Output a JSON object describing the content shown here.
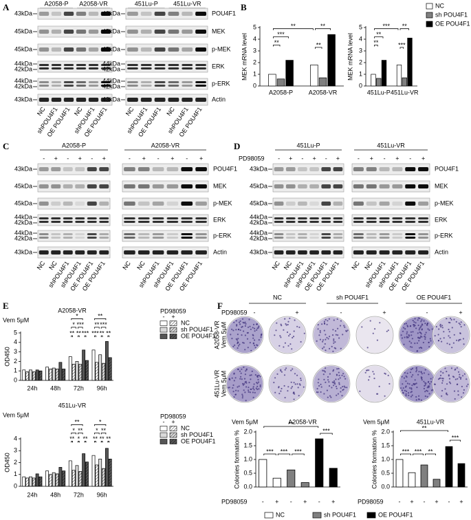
{
  "panel_labels": [
    "A",
    "B",
    "C",
    "D",
    "E",
    "F"
  ],
  "blot_panels": [
    {
      "blocks": [
        {
          "titles": [
            "A2058-P",
            "A2058-VR"
          ],
          "markers": [
            "43kDa",
            "45kDa",
            "45kDa",
            [
              "44kDa",
              "42kDa"
            ],
            [
              "44kDa",
              "42kDa"
            ],
            "43kDa"
          ],
          "lanes": [
            "NC",
            "shPOU4F1",
            "OE POU4F1",
            "NC",
            "shPOU4F1",
            "OE POU4F1"
          ]
        },
        {
          "titles": [
            "451Lu-P",
            "451Lu-VR"
          ],
          "markers": [
            "43kDa",
            "45kDa",
            "45kDa",
            [
              "44kDa",
              "42kDa"
            ],
            [
              "44kDa",
              "42kDa"
            ],
            "43kDa"
          ],
          "lanes": [
            "NC",
            "shPOU4F1",
            "OE POU4F1",
            "NC",
            "shPOU4F1",
            "OE POU4F1"
          ]
        }
      ],
      "proteins": [
        "POU4F1",
        "MEK",
        "p-MEK",
        "ERK",
        "p-ERK",
        "Actin"
      ]
    },
    {
      "blocks": [
        {
          "titles": [
            "A2058-P"
          ],
          "signs": [
            "-",
            "+",
            "-",
            "+",
            "-",
            "+"
          ],
          "markers": [
            "43kDa",
            "45kDa",
            "45kDa",
            [
              "44kDa",
              "42kDa"
            ],
            [
              "44kDa",
              "42kDa"
            ],
            "43kDa"
          ],
          "lanes": [
            "NC",
            "NC",
            "shPOU4F1",
            "shPOU4F1",
            "OE POU4F1",
            "OE POU4F1"
          ]
        },
        {
          "titles": [
            "A2058-VR"
          ],
          "signs": [
            "-",
            "+",
            "-",
            "+",
            "-",
            "+"
          ],
          "lanes": [
            "NC",
            "NC",
            "shPOU4F1",
            "shPOU4F1",
            "OE POU4F1",
            "OE POU4F1"
          ]
        }
      ],
      "proteins": [
        "POU4F1",
        "MEK",
        "p-MEK",
        "ERK",
        "p-ERK",
        "Actin"
      ]
    },
    {
      "pd_label": "PD98059",
      "blocks": [
        {
          "titles": [
            "451Lu-P"
          ],
          "signs": [
            "-",
            "+",
            "-",
            "+",
            "-",
            "+"
          ],
          "markers": [
            "43kDa",
            "45kDa",
            "45kDa",
            [
              "44kDa",
              "42kDa"
            ],
            [
              "44kDa",
              "42kDa"
            ],
            "43kDa"
          ],
          "lanes": [
            "NC",
            "NC",
            "shPOU4F1",
            "shPOU4F1",
            "OE POU4F1",
            "OE POU4F1"
          ]
        },
        {
          "titles": [
            "451Lu-VR"
          ],
          "signs": [
            "-",
            "+",
            "-",
            "+",
            "-",
            "+"
          ],
          "lanes": [
            "NC",
            "NC",
            "shPOU4F1",
            "shPOU4F1",
            "OE POU4F1",
            "OE POU4F1"
          ]
        }
      ],
      "proteins": [
        "POU4F1",
        "MEK",
        "p-MEK",
        "ERK",
        "p-ERK",
        "Actin"
      ]
    }
  ],
  "chart_data": [
    {
      "type": "bar",
      "ylabel": "MEK mRNA level",
      "categories": [
        "A2058-P",
        "A2058-VR"
      ],
      "series": [
        {
          "color": "#ffffff",
          "values": [
            1.0,
            1.8
          ]
        },
        {
          "color": "#808080",
          "values": [
            0.6,
            0.7
          ]
        },
        {
          "color": "#000000",
          "values": [
            2.2,
            4.4
          ]
        }
      ],
      "ylim": [
        0,
        5
      ],
      "yticks": [
        0,
        1,
        2,
        3,
        4,
        5
      ],
      "annotations": [
        "**",
        "***",
        "**",
        "**",
        "**"
      ]
    },
    {
      "type": "bar",
      "ylabel": "MEK mRNA level",
      "categories": [
        "451Lu-P",
        "451Lu-VR"
      ],
      "series": [
        {
          "name": "NC",
          "color": "#ffffff",
          "values": [
            1.0,
            1.8
          ]
        },
        {
          "name": "sh POU4F1",
          "color": "#808080",
          "values": [
            0.65,
            0.7
          ]
        },
        {
          "name": "OE POU4F1",
          "color": "#000000",
          "values": [
            2.2,
            4.1
          ]
        }
      ],
      "ylim": [
        0,
        5
      ],
      "yticks": [
        0,
        1,
        2,
        3,
        4,
        5
      ],
      "legend": "right",
      "annotations": [
        "***",
        "**",
        "**",
        "**",
        "***"
      ]
    },
    {
      "type": "bar",
      "title": "A2058-VR",
      "condition": "Vem 5μM",
      "ylabel": "OD450",
      "categories": [
        "24h",
        "48h",
        "72h",
        "96h"
      ],
      "series": [
        {
          "color": "#ffffff",
          "hatch": false,
          "values": [
            1.1,
            1.4,
            2.5,
            3.2
          ]
        },
        {
          "color": "#ffffff",
          "hatch": true,
          "values": [
            0.9,
            1.2,
            1.7,
            1.9
          ]
        },
        {
          "color": "#d9d9d9",
          "hatch": false,
          "values": [
            1.1,
            1.3,
            2.0,
            2.7
          ]
        },
        {
          "color": "#d9d9d9",
          "hatch": true,
          "values": [
            0.9,
            1.2,
            1.7,
            1.8
          ]
        },
        {
          "color": "#555555",
          "hatch": false,
          "values": [
            1.1,
            1.9,
            3.2,
            4.1
          ]
        },
        {
          "color": "#555555",
          "hatch": true,
          "values": [
            1.0,
            1.2,
            2.1,
            2.4
          ]
        }
      ],
      "ylim": [
        0,
        5
      ],
      "yticks": [
        0,
        1,
        2,
        3,
        4,
        5
      ],
      "legend": {
        "title": "PD98059",
        "columns": [
          "-",
          "+"
        ],
        "rows": [
          "NC",
          "sh POU4F1",
          "OE POU4F1"
        ]
      },
      "annotations": [
        "*",
        "**",
        "*",
        "***",
        "**",
        "***",
        "**",
        "**",
        "***",
        "***",
        "**",
        "**"
      ]
    },
    {
      "type": "bar",
      "title": "451Lu-VR",
      "condition": "Vem 5μM",
      "ylabel": "OD450",
      "categories": [
        "24h",
        "48h",
        "72h",
        "96h"
      ],
      "series": [
        {
          "color": "#ffffff",
          "hatch": false,
          "values": [
            0.8,
            1.3,
            2.15,
            2.6
          ]
        },
        {
          "color": "#ffffff",
          "hatch": true,
          "values": [
            0.7,
            1.0,
            1.35,
            1.8
          ]
        },
        {
          "color": "#d9d9d9",
          "hatch": false,
          "values": [
            0.8,
            1.15,
            1.75,
            2.3
          ]
        },
        {
          "color": "#d9d9d9",
          "hatch": true,
          "values": [
            0.7,
            1.05,
            1.25,
            1.5
          ]
        },
        {
          "color": "#555555",
          "hatch": false,
          "values": [
            1.05,
            1.6,
            2.75,
            3.2
          ]
        },
        {
          "color": "#555555",
          "hatch": true,
          "values": [
            0.8,
            1.3,
            2.05,
            2.3
          ]
        }
      ],
      "ylim": [
        0,
        4
      ],
      "yticks": [
        0,
        1,
        2,
        3,
        4
      ],
      "legend": {
        "title": "PD98059",
        "columns": [
          "-",
          "+"
        ],
        "rows": [
          "NC",
          "sh POU4F1",
          "OE POU4F1"
        ]
      },
      "annotations": [
        "**",
        "*",
        "*",
        "**",
        "*",
        "**",
        "**",
        "*",
        "**",
        "**",
        "**",
        "**"
      ]
    },
    {
      "type": "bar",
      "title": "A2058-VR",
      "condition": "Vem 5μM",
      "ylabel": "Colonies formation %",
      "xlabel": "PD98059",
      "categories": [
        "-",
        "+",
        "-",
        "+",
        "-",
        "+"
      ],
      "values": [
        1.0,
        0.32,
        0.62,
        0.16,
        1.75,
        0.68
      ],
      "colors": [
        "#ffffff",
        "#ffffff",
        "#808080",
        "#808080",
        "#000000",
        "#000000"
      ],
      "ylim": [
        0,
        2
      ],
      "yticks": [
        {
          "value": 0,
          "label": "0.0"
        },
        0.5,
        {
          "value": 1,
          "label": "1.0"
        },
        1.5,
        {
          "value": 2,
          "label": "2.0"
        }
      ],
      "annotations": [
        "***",
        "***",
        "***",
        "**",
        "***"
      ]
    },
    {
      "type": "bar",
      "title": "451Lu-VR",
      "condition": "Vem 5μM",
      "ylabel": "Colonies formation %",
      "xlabel": "PD98059",
      "categories": [
        "-",
        "+",
        "-",
        "+",
        "-",
        "+"
      ],
      "values": [
        1.0,
        0.52,
        0.8,
        0.28,
        1.47,
        0.85
      ],
      "colors": [
        "#ffffff",
        "#ffffff",
        "#808080",
        "#808080",
        "#000000",
        "#000000"
      ],
      "ylim": [
        0,
        2
      ],
      "yticks": [
        {
          "value": 0,
          "label": "0.0"
        },
        0.5,
        {
          "value": 1,
          "label": "1.0"
        },
        1.5,
        {
          "value": 2,
          "label": "2.0"
        }
      ],
      "annotations": [
        "***",
        "***",
        "**",
        "**",
        "***"
      ]
    }
  ],
  "colony": {
    "groups": [
      "NC",
      "sh POU4F1",
      "OE POU4F1"
    ],
    "pd_label": "PD98059",
    "signs": [
      "-",
      "+",
      "-",
      "+",
      "-",
      "+"
    ],
    "rows": [
      [
        "A2058-VR",
        "Vem 5μM"
      ],
      [
        "451Lu-VR",
        "Vem 5μM"
      ]
    ],
    "legend": {
      "names": [
        "NC",
        "sh POU4F1",
        "OE POU4F1"
      ],
      "colors": [
        "#ffffff",
        "#808080",
        "#000000"
      ]
    }
  }
}
